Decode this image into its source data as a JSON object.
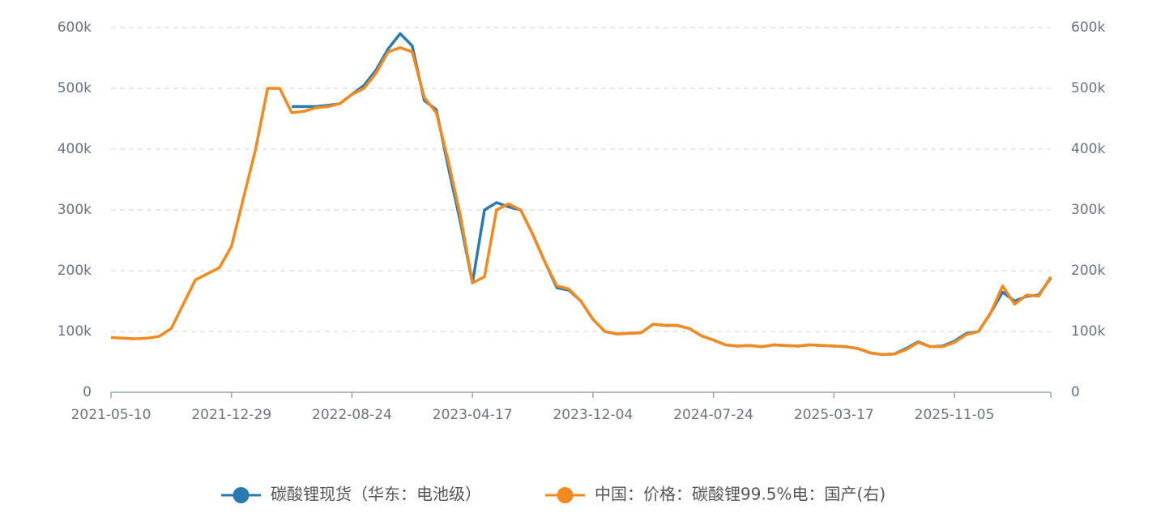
{
  "chart_data": {
    "type": "line",
    "categories": [
      "2021-05-10",
      null,
      null,
      null,
      null,
      null,
      null,
      null,
      null,
      null,
      "2021-12-29",
      null,
      null,
      null,
      null,
      null,
      null,
      null,
      null,
      null,
      "2022-08-24",
      null,
      null,
      null,
      null,
      null,
      null,
      null,
      null,
      null,
      "2023-04-17",
      null,
      null,
      null,
      null,
      null,
      null,
      null,
      null,
      null,
      "2023-12-04",
      null,
      null,
      null,
      null,
      null,
      null,
      null,
      null,
      null,
      "2024-07-24",
      null,
      null,
      null,
      null,
      null,
      null,
      null,
      null,
      null,
      "2025-03-17",
      null,
      null,
      null,
      null,
      null,
      null,
      null,
      null,
      null,
      "2025-11-05",
      null,
      null,
      null,
      null,
      null,
      null,
      null,
      null
    ],
    "series": [
      {
        "name": "碳酸锂现货（华东：电池级）",
        "color": "#2a7ab0",
        "values": [
          null,
          null,
          null,
          null,
          null,
          null,
          null,
          null,
          null,
          null,
          null,
          null,
          null,
          null,
          null,
          470000,
          470000,
          470000,
          472000,
          475000,
          490000,
          505000,
          530000,
          565000,
          590000,
          570000,
          480000,
          465000,
          370000,
          280000,
          180000,
          300000,
          312000,
          305000,
          300000,
          260000,
          215000,
          172000,
          168000,
          150000,
          120000,
          100000,
          96000,
          97000,
          98000,
          112000,
          110000,
          110000,
          105000,
          93000,
          86000,
          78000,
          76000,
          77000,
          75000,
          78000,
          77000,
          76000,
          78000,
          77000,
          76000,
          75000,
          72000,
          65000,
          62000,
          63000,
          72000,
          83000,
          75000,
          76000,
          84000,
          97000,
          100000,
          130000,
          165000,
          150000,
          158000,
          160000,
          188000
        ]
      },
      {
        "name": "中国：价格：碳酸锂99.5%电：国产(右)",
        "color": "#f28b1f",
        "axis": "y2",
        "values": [
          90000,
          89000,
          88000,
          89000,
          92000,
          105000,
          145000,
          185000,
          195000,
          205000,
          240000,
          320000,
          400000,
          500000,
          500000,
          460000,
          462000,
          468000,
          470000,
          475000,
          490000,
          500000,
          525000,
          560000,
          567000,
          560000,
          485000,
          460000,
          380000,
          290000,
          180000,
          190000,
          300000,
          310000,
          300000,
          260000,
          215000,
          175000,
          170000,
          150000,
          120000,
          100000,
          96000,
          97000,
          98000,
          112000,
          110000,
          110000,
          105000,
          93000,
          86000,
          78000,
          76000,
          77000,
          75000,
          78000,
          77000,
          76000,
          78000,
          77000,
          76000,
          75000,
          72000,
          65000,
          62000,
          63000,
          70000,
          82000,
          75000,
          75000,
          82000,
          95000,
          100000,
          130000,
          175000,
          145000,
          160000,
          158000,
          190000
        ]
      }
    ],
    "ylim": [
      0,
      600000
    ],
    "yticks": [
      0,
      {
        "value": 100000,
        "label": "100k"
      },
      {
        "value": 200000,
        "label": "200k"
      },
      {
        "value": 300000,
        "label": "300k"
      },
      {
        "value": 400000,
        "label": "400k"
      },
      {
        "value": 500000,
        "label": "500k"
      },
      {
        "value": 600000,
        "label": "600k"
      }
    ],
    "y2lim": [
      0,
      600000
    ],
    "y2ticks": [
      0,
      {
        "value": 100000,
        "label": "100k"
      },
      {
        "value": 200000,
        "label": "200k"
      },
      {
        "value": 300000,
        "label": "300k"
      },
      {
        "value": 400000,
        "label": "400k"
      },
      {
        "value": 500000,
        "label": "500k"
      },
      {
        "value": 600000,
        "label": "600k"
      }
    ],
    "grid": true
  }
}
